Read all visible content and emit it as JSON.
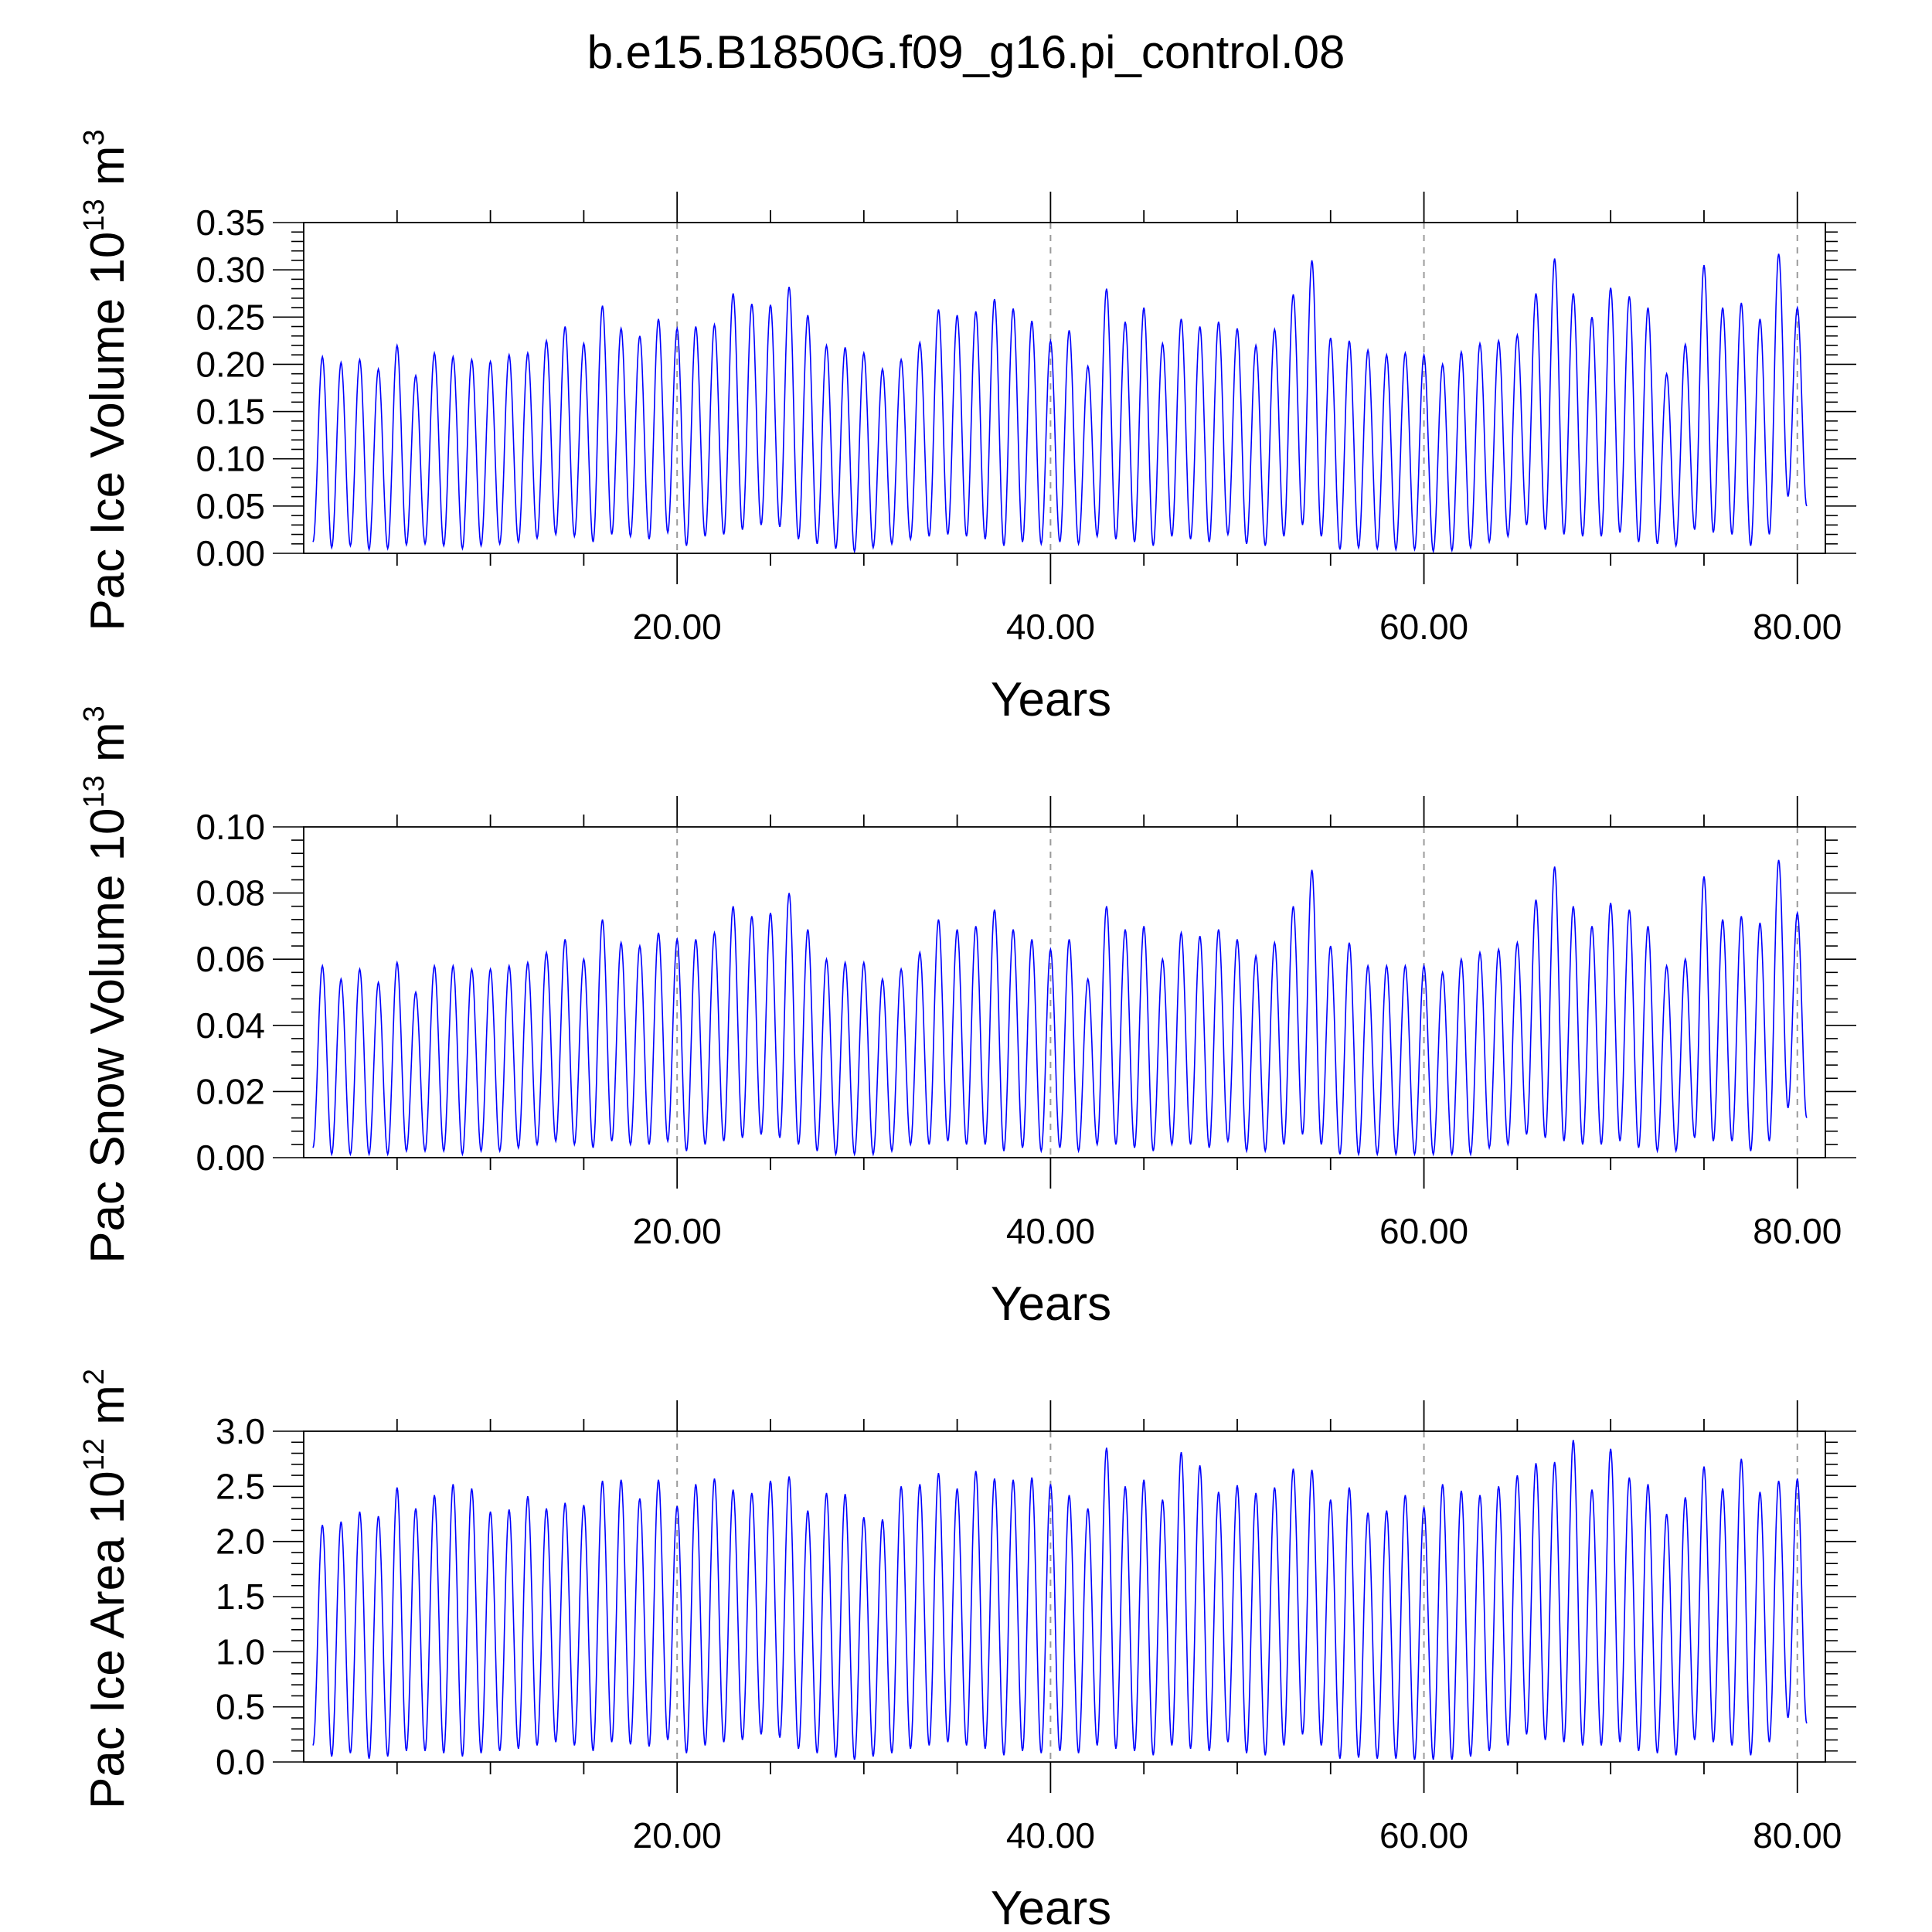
{
  "title": "b.e15.B1850G.f09_g16.pi_control.08",
  "colors": {
    "series": "#0000ff",
    "axis": "#000000",
    "grid": "#9a9a9a",
    "background": "#ffffff"
  },
  "chart_data": [
    {
      "type": "line",
      "ylabel": {
        "text": "Pac Ice Volume 10",
        "exp": "13",
        "unit": " m",
        "unit_exp": "3"
      },
      "xlabel": "Years",
      "xlim": [
        0,
        81.5
      ],
      "ylim": [
        0,
        0.35
      ],
      "xticks": [
        20,
        40,
        60,
        80
      ],
      "xtick_labels": [
        "20.00",
        "40.00",
        "60.00",
        "80.00"
      ],
      "yticks": [
        0,
        0.05,
        0.1,
        0.15,
        0.2,
        0.25,
        0.3,
        0.35
      ],
      "ytick_labels": [
        "0.00",
        "0.05",
        "0.10",
        "0.15",
        "0.20",
        "0.25",
        "0.30",
        "0.35"
      ],
      "grid": "vertical dashed at major x ticks",
      "series": [
        {
          "x_start": 0.5,
          "x_step": 1,
          "min": [
            0.012,
            0.006,
            0.008,
            0.004,
            0.005,
            0.009,
            0.01,
            0.008,
            0.005,
            0.008,
            0.01,
            0.012,
            0.016,
            0.02,
            0.018,
            0.012,
            0.02,
            0.018,
            0.015,
            0.022,
            0.008,
            0.018,
            0.02,
            0.025,
            0.03,
            0.028,
            0.015,
            0.01,
            0.005,
            0.002,
            0.006,
            0.01,
            0.015,
            0.018,
            0.02,
            0.018,
            0.015,
            0.008,
            0.012,
            0.01,
            0.012,
            0.01,
            0.018,
            0.015,
            0.012,
            0.008,
            0.018,
            0.015,
            0.012,
            0.02,
            0.01,
            0.008,
            0.018,
            0.03,
            0.018,
            0.004,
            0.006,
            0.005,
            0.004,
            0.004,
            0.002,
            0.003,
            0.006,
            0.012,
            0.018,
            0.03,
            0.025,
            0.02,
            0.018,
            0.018,
            0.022,
            0.012,
            0.01,
            0.008,
            0.025,
            0.022,
            0.02,
            0.008,
            0.02,
            0.06,
            0.05
          ],
          "max": [
            0.208,
            0.202,
            0.205,
            0.195,
            0.22,
            0.188,
            0.212,
            0.208,
            0.205,
            0.203,
            0.21,
            0.212,
            0.225,
            0.24,
            0.222,
            0.262,
            0.238,
            0.23,
            0.248,
            0.238,
            0.24,
            0.242,
            0.275,
            0.264,
            0.263,
            0.282,
            0.252,
            0.22,
            0.218,
            0.212,
            0.195,
            0.205,
            0.223,
            0.258,
            0.252,
            0.256,
            0.269,
            0.259,
            0.246,
            0.225,
            0.236,
            0.198,
            0.28,
            0.245,
            0.26,
            0.222,
            0.248,
            0.24,
            0.245,
            0.238,
            0.22,
            0.237,
            0.274,
            0.31,
            0.228,
            0.225,
            0.215,
            0.21,
            0.212,
            0.21,
            0.2,
            0.213,
            0.222,
            0.225,
            0.231,
            0.275,
            0.312,
            0.275,
            0.25,
            0.281,
            0.272,
            0.26,
            0.19,
            0.221,
            0.305,
            0.26,
            0.265,
            0.248,
            0.317,
            0.26,
            0.24
          ]
        }
      ]
    },
    {
      "type": "line",
      "ylabel": {
        "text": "Pac Snow Volume 10",
        "exp": "13",
        "unit": " m",
        "unit_exp": "3"
      },
      "xlabel": "Years",
      "xlim": [
        0,
        81.5
      ],
      "ylim": [
        0,
        0.1
      ],
      "xticks": [
        20,
        40,
        60,
        80
      ],
      "xtick_labels": [
        "20.00",
        "40.00",
        "60.00",
        "80.00"
      ],
      "yticks": [
        0,
        0.02,
        0.04,
        0.06,
        0.08,
        0.1
      ],
      "ytick_labels": [
        "0.00",
        "0.02",
        "0.04",
        "0.06",
        "0.08",
        "0.10"
      ],
      "grid": "vertical dashed at major x ticks",
      "series": [
        {
          "x_start": 0.5,
          "x_step": 1,
          "min": [
            0.003,
            0.001,
            0.001,
            0.001,
            0.001,
            0.002,
            0.002,
            0.002,
            0.001,
            0.002,
            0.002,
            0.003,
            0.004,
            0.005,
            0.004,
            0.003,
            0.005,
            0.004,
            0.004,
            0.005,
            0.002,
            0.004,
            0.005,
            0.006,
            0.007,
            0.006,
            0.004,
            0.002,
            0.001,
            0.001,
            0.001,
            0.002,
            0.004,
            0.004,
            0.005,
            0.004,
            0.004,
            0.002,
            0.003,
            0.002,
            0.003,
            0.002,
            0.004,
            0.004,
            0.003,
            0.002,
            0.004,
            0.004,
            0.003,
            0.005,
            0.002,
            0.002,
            0.004,
            0.007,
            0.004,
            0.001,
            0.001,
            0.001,
            0.001,
            0.001,
            0.001,
            0.001,
            0.001,
            0.003,
            0.004,
            0.007,
            0.006,
            0.005,
            0.004,
            0.004,
            0.005,
            0.003,
            0.002,
            0.002,
            0.006,
            0.005,
            0.005,
            0.002,
            0.005,
            0.015,
            0.012
          ],
          "max": [
            0.058,
            0.054,
            0.057,
            0.053,
            0.059,
            0.05,
            0.058,
            0.058,
            0.057,
            0.057,
            0.058,
            0.059,
            0.062,
            0.066,
            0.06,
            0.072,
            0.065,
            0.064,
            0.068,
            0.066,
            0.066,
            0.068,
            0.076,
            0.073,
            0.074,
            0.08,
            0.069,
            0.06,
            0.059,
            0.059,
            0.054,
            0.057,
            0.062,
            0.072,
            0.069,
            0.07,
            0.075,
            0.069,
            0.066,
            0.063,
            0.066,
            0.054,
            0.076,
            0.069,
            0.07,
            0.06,
            0.068,
            0.067,
            0.069,
            0.066,
            0.061,
            0.065,
            0.076,
            0.087,
            0.064,
            0.065,
            0.058,
            0.058,
            0.058,
            0.058,
            0.056,
            0.06,
            0.062,
            0.063,
            0.065,
            0.078,
            0.088,
            0.076,
            0.07,
            0.077,
            0.075,
            0.07,
            0.058,
            0.06,
            0.085,
            0.072,
            0.073,
            0.071,
            0.09,
            0.074,
            0.07
          ]
        }
      ]
    },
    {
      "type": "line",
      "ylabel": {
        "text": "Pac Ice Area 10",
        "exp": "12",
        "unit": " m",
        "unit_exp": "2"
      },
      "xlabel": "Years",
      "xlim": [
        0,
        81.5
      ],
      "ylim": [
        0,
        3.0
      ],
      "xticks": [
        20,
        40,
        60,
        80
      ],
      "xtick_labels": [
        "20.00",
        "40.00",
        "60.00",
        "80.00"
      ],
      "yticks": [
        0,
        0.5,
        1.0,
        1.5,
        2.0,
        2.5,
        3.0
      ],
      "ytick_labels": [
        "0.0",
        "0.5",
        "1.0",
        "1.5",
        "2.0",
        "2.5",
        "3.0"
      ],
      "grid": "vertical dashed at major x ticks",
      "series": [
        {
          "x_start": 0.5,
          "x_step": 1,
          "min": [
            0.15,
            0.05,
            0.08,
            0.03,
            0.05,
            0.1,
            0.1,
            0.08,
            0.05,
            0.08,
            0.1,
            0.12,
            0.15,
            0.18,
            0.15,
            0.1,
            0.18,
            0.16,
            0.14,
            0.2,
            0.08,
            0.15,
            0.18,
            0.2,
            0.25,
            0.22,
            0.12,
            0.08,
            0.04,
            0.02,
            0.05,
            0.08,
            0.12,
            0.15,
            0.18,
            0.15,
            0.12,
            0.06,
            0.1,
            0.08,
            0.1,
            0.08,
            0.15,
            0.12,
            0.1,
            0.06,
            0.15,
            0.12,
            0.1,
            0.18,
            0.08,
            0.06,
            0.15,
            0.25,
            0.15,
            0.03,
            0.04,
            0.03,
            0.03,
            0.02,
            0.02,
            0.02,
            0.05,
            0.1,
            0.15,
            0.25,
            0.2,
            0.18,
            0.15,
            0.15,
            0.18,
            0.1,
            0.08,
            0.06,
            0.2,
            0.18,
            0.15,
            0.06,
            0.18,
            0.4,
            0.35
          ],
          "max": [
            2.15,
            2.18,
            2.27,
            2.23,
            2.49,
            2.3,
            2.42,
            2.52,
            2.48,
            2.27,
            2.29,
            2.41,
            2.3,
            2.35,
            2.33,
            2.55,
            2.56,
            2.39,
            2.56,
            2.32,
            2.52,
            2.57,
            2.47,
            2.44,
            2.55,
            2.59,
            2.28,
            2.44,
            2.43,
            2.22,
            2.2,
            2.5,
            2.52,
            2.62,
            2.48,
            2.64,
            2.57,
            2.56,
            2.58,
            2.52,
            2.42,
            2.3,
            2.85,
            2.5,
            2.56,
            2.38,
            2.81,
            2.69,
            2.45,
            2.51,
            2.44,
            2.49,
            2.66,
            2.65,
            2.38,
            2.49,
            2.26,
            2.28,
            2.42,
            2.31,
            2.52,
            2.46,
            2.42,
            2.5,
            2.6,
            2.71,
            2.72,
            2.92,
            2.47,
            2.84,
            2.58,
            2.52,
            2.25,
            2.4,
            2.68,
            2.48,
            2.75,
            2.45,
            2.55,
            2.57,
            2.5
          ]
        }
      ]
    }
  ]
}
